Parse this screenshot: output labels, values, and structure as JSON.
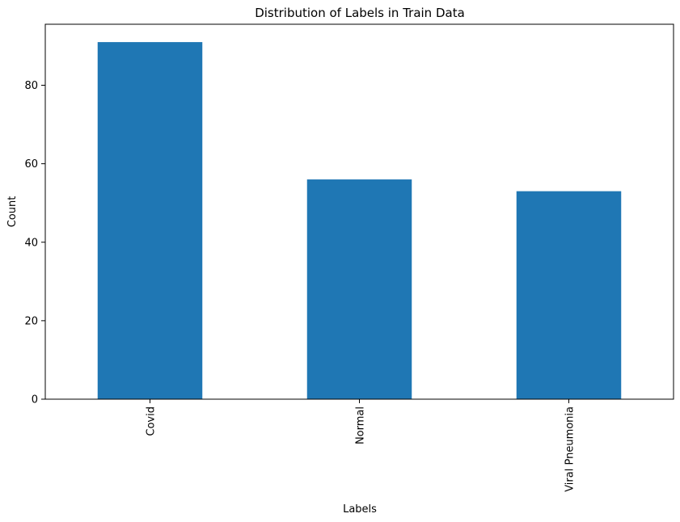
{
  "chart_data": {
    "type": "bar",
    "title": "Distribution of Labels in Train Data",
    "xlabel": "Labels",
    "ylabel": "Count",
    "categories": [
      "Covid",
      "Normal",
      "Viral Pneumonia"
    ],
    "values": [
      91,
      56,
      53
    ],
    "ylim": [
      0,
      95.55
    ],
    "yticks": [
      0,
      20,
      40,
      60,
      80
    ],
    "bar_color": "#1f77b4",
    "grid": false,
    "legend": "none",
    "x_tick_rotation": "vertical"
  }
}
